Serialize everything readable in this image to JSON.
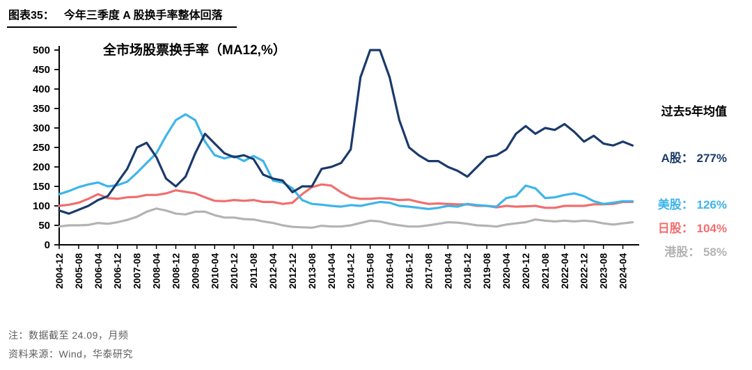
{
  "header": {
    "label": "图表35：",
    "title": "今年三季度 A 股换手率整体回落"
  },
  "chart_data": {
    "type": "line",
    "title": "全市场股票换手率（MA12,%）",
    "x_start": "2004-12",
    "x_end": "2024-09",
    "x_step_months": 4,
    "x_tick_step_months": 8,
    "x_tick_labels": [
      "2004-12",
      "2005-08",
      "2006-04",
      "2006-12",
      "2007-08",
      "2008-04",
      "2008-12",
      "2009-08",
      "2010-04",
      "2010-12",
      "2011-08",
      "2012-04",
      "2012-12",
      "2013-08",
      "2014-04",
      "2014-12",
      "2015-08",
      "2016-04",
      "2016-12",
      "2017-08",
      "2018-04",
      "2018-12",
      "2019-08",
      "2020-04",
      "2020-12",
      "2021-08",
      "2022-04",
      "2022-12",
      "2023-08",
      "2024-04"
    ],
    "ylim": [
      0,
      500
    ],
    "y_ticks": [
      0,
      50,
      100,
      150,
      200,
      250,
      300,
      350,
      400,
      450,
      500
    ],
    "grid": false,
    "legend_position": "right-annotations",
    "series": [
      {
        "name": "A股",
        "color": "#1b3a6b",
        "values": [
          88,
          80,
          90,
          100,
          115,
          125,
          160,
          195,
          250,
          262,
          225,
          170,
          150,
          175,
          235,
          285,
          260,
          235,
          225,
          230,
          220,
          180,
          170,
          165,
          135,
          150,
          150,
          195,
          200,
          210,
          245,
          430,
          500,
          500,
          430,
          320,
          250,
          230,
          215,
          215,
          200,
          190,
          175,
          200,
          225,
          230,
          245,
          285,
          305,
          285,
          300,
          295,
          310,
          290,
          265,
          280,
          260,
          255,
          265,
          255
        ]
      },
      {
        "name": "美股",
        "color": "#3db5ea",
        "values": [
          130,
          138,
          148,
          155,
          160,
          150,
          153,
          162,
          185,
          210,
          235,
          280,
          320,
          335,
          320,
          265,
          230,
          222,
          228,
          215,
          228,
          215,
          165,
          160,
          145,
          115,
          105,
          103,
          100,
          98,
          102,
          100,
          105,
          110,
          108,
          100,
          98,
          95,
          92,
          95,
          100,
          98,
          105,
          102,
          100,
          98,
          120,
          125,
          152,
          145,
          120,
          122,
          128,
          132,
          125,
          112,
          105,
          108,
          112,
          112
        ]
      },
      {
        "name": "日股",
        "color": "#f26d6d",
        "values": [
          100,
          103,
          108,
          118,
          130,
          120,
          118,
          122,
          123,
          128,
          128,
          132,
          140,
          136,
          132,
          122,
          113,
          112,
          115,
          113,
          115,
          110,
          110,
          105,
          108,
          130,
          148,
          155,
          152,
          135,
          122,
          118,
          118,
          120,
          118,
          115,
          116,
          110,
          105,
          106,
          105,
          104,
          104,
          100,
          100,
          96,
          100,
          98,
          99,
          100,
          95,
          95,
          100,
          100,
          100,
          104,
          104,
          105,
          110,
          110
        ]
      },
      {
        "name": "港股",
        "color": "#b3b3b3",
        "values": [
          47,
          50,
          50,
          51,
          56,
          54,
          58,
          64,
          72,
          85,
          93,
          88,
          80,
          78,
          85,
          85,
          76,
          70,
          70,
          66,
          65,
          60,
          56,
          50,
          46,
          45,
          44,
          49,
          47,
          47,
          50,
          56,
          62,
          60,
          54,
          50,
          47,
          47,
          50,
          54,
          58,
          57,
          54,
          50,
          49,
          47,
          52,
          55,
          58,
          65,
          62,
          60,
          62,
          60,
          62,
          60,
          55,
          52,
          55,
          58
        ]
      }
    ],
    "annotations": {
      "title": "过去5年均值",
      "items": [
        {
          "label": "A股：",
          "value": "277%",
          "color": "#1b3a6b"
        },
        {
          "label": "美股：",
          "value": "126%",
          "color": "#3db5ea"
        },
        {
          "label": "日股：",
          "value": "104%",
          "color": "#f26d6d"
        },
        {
          "label": "港股：",
          "value": "58%",
          "color": "#b3b3b3"
        }
      ]
    }
  },
  "footer": {
    "note": "注：数据截至 24.09，月频",
    "source": "资料来源：Wind，华泰研究"
  }
}
